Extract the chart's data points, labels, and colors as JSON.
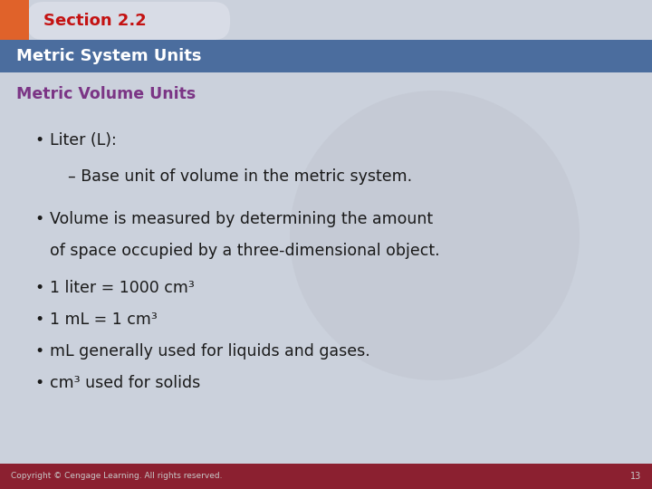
{
  "section_title": "Section 2.2",
  "slide_title": "Metric System Units",
  "content_title": "Metric Volume Units",
  "bg_color": "#cbd1dc",
  "section_tab_bg": "#d8dce6",
  "section_tab_color": "#e0622a",
  "section_text_color": "#c41212",
  "slide_title_bar_color": "#4b6d9e",
  "slide_title_text_color": "#ffffff",
  "content_title_color": "#7b3585",
  "bullet_text_color": "#1a1a1a",
  "footer_bar_color": "#8b2030",
  "footer_text_color": "#c8c8c8",
  "footer_text": "Copyright © Cengage Learning. All rights reserved.",
  "footer_page": "13",
  "watermark_color": "#bbbfc9"
}
